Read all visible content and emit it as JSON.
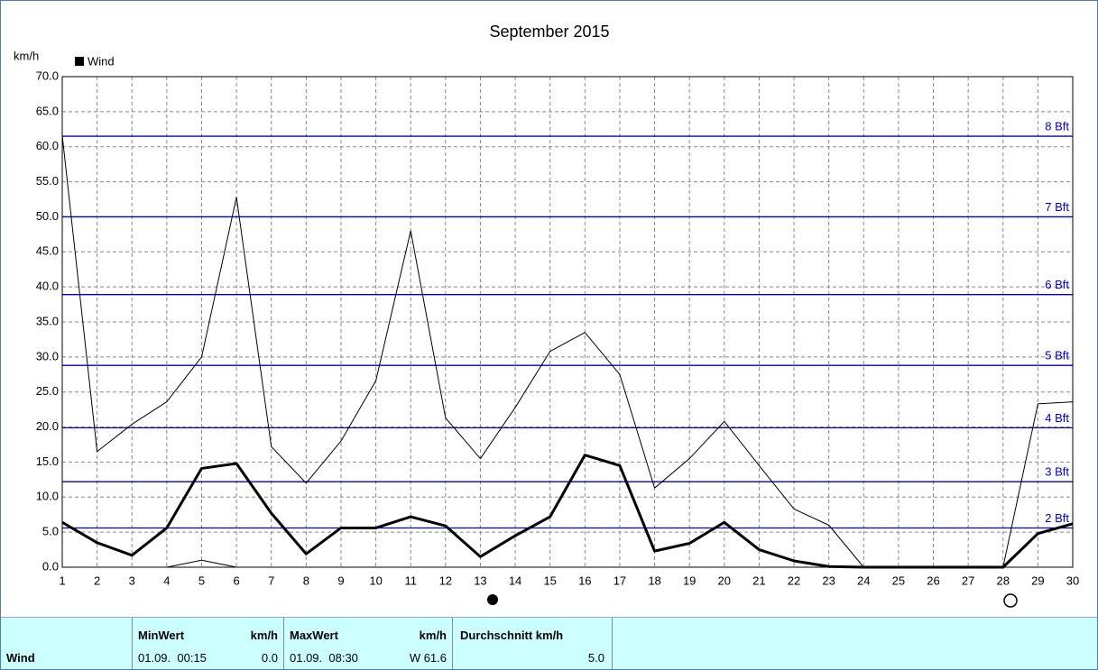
{
  "chart_data": {
    "type": "line",
    "title": "September 2015",
    "y_label": "km/h",
    "x": [
      1,
      2,
      3,
      4,
      5,
      6,
      7,
      8,
      9,
      10,
      11,
      12,
      13,
      14,
      15,
      16,
      17,
      18,
      19,
      20,
      21,
      22,
      23,
      24,
      25,
      26,
      27,
      28,
      29,
      30
    ],
    "series": [
      {
        "name": "Wind",
        "color": "#000000",
        "width": 3,
        "values": [
          6.4,
          3.5,
          1.7,
          5.6,
          14.1,
          14.8,
          7.7,
          1.9,
          5.6,
          5.6,
          7.2,
          5.9,
          1.5,
          4.5,
          7.2,
          16.0,
          14.5,
          2.3,
          3.4,
          6.4,
          2.5,
          0.9,
          0.1,
          0,
          0,
          0,
          0,
          0,
          4.8,
          6.2
        ]
      },
      {
        "color": "#000000",
        "width": 1,
        "values": [
          61.6,
          16.5,
          20.4,
          23.6,
          30.0,
          52.8,
          17.2,
          12.0,
          18.0,
          26.6,
          48.0,
          21.3,
          15.5,
          22.8,
          30.8,
          33.5,
          27.5,
          11.3,
          15.5,
          20.8,
          14.5,
          8.3,
          6.0,
          0,
          0,
          0,
          0,
          0,
          23.3,
          23.6
        ]
      },
      {
        "color": "#000000",
        "width": 1,
        "values": [
          null,
          null,
          null,
          0,
          1.0,
          0,
          null,
          null,
          null,
          null,
          null,
          null,
          null,
          null,
          null,
          null,
          null,
          null,
          null,
          null,
          null,
          null,
          null,
          null,
          null,
          null,
          null,
          null,
          null,
          null
        ]
      }
    ],
    "xlim": [
      1,
      30
    ],
    "ylim": [
      0,
      70
    ],
    "xticks": [
      1,
      2,
      3,
      4,
      5,
      6,
      7,
      8,
      9,
      10,
      11,
      12,
      13,
      14,
      15,
      16,
      17,
      18,
      19,
      20,
      21,
      22,
      23,
      24,
      25,
      26,
      27,
      28,
      29,
      30
    ],
    "yticks": [
      {
        "value": 0,
        "label": "0.0"
      },
      {
        "value": 5,
        "label": "5.0"
      },
      {
        "value": 10,
        "label": "10.0"
      },
      {
        "value": 15,
        "label": "15.0"
      },
      {
        "value": 20,
        "label": "20.0"
      },
      {
        "value": 25,
        "label": "25.0"
      },
      {
        "value": 30,
        "label": "30.0"
      },
      {
        "value": 35,
        "label": "35.0"
      },
      {
        "value": 40,
        "label": "40.0"
      },
      {
        "value": 45,
        "label": "45.0"
      },
      {
        "value": 50,
        "label": "50.0"
      },
      {
        "value": 55,
        "label": "55.0"
      },
      {
        "value": 60,
        "label": "60.0"
      },
      {
        "value": 65,
        "label": "65.0"
      },
      {
        "value": 70,
        "label": "70.0"
      }
    ],
    "grid": true,
    "reference_color": "#0000cc",
    "reference_lines": [
      {
        "value": 5.6,
        "label": "2 Bft"
      },
      {
        "value": 12.2,
        "label": "3 Bft"
      },
      {
        "value": 19.9,
        "label": "4 Bft"
      },
      {
        "value": 28.8,
        "label": "5 Bft"
      },
      {
        "value": 38.9,
        "label": "6 Bft"
      },
      {
        "value": 50.0,
        "label": "7 Bft"
      },
      {
        "value": 61.5,
        "label": "8 Bft"
      }
    ]
  },
  "table": {
    "row_label": "Wind",
    "columns": [
      {
        "header": "MinWert",
        "unit": "km/h",
        "date": "01.09.  00:15",
        "value": "0.0"
      },
      {
        "header": "MaxWert",
        "unit": "km/h",
        "date": "01.09.  08:30",
        "value": "W 61.6"
      },
      {
        "header": "Durchschnitt km/h",
        "value": "5.0"
      }
    ]
  }
}
